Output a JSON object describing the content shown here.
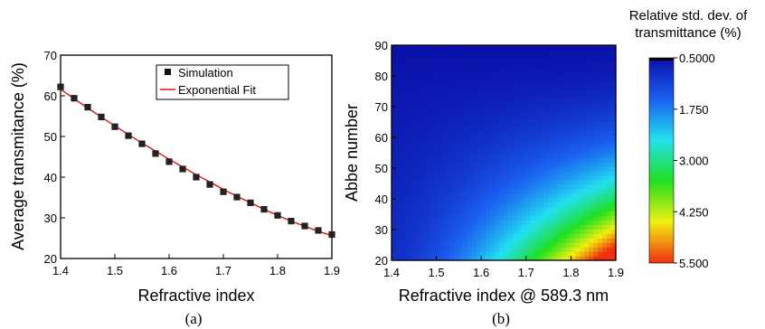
{
  "chart_data": [
    {
      "type": "scatter",
      "caption": "(a)",
      "xlabel": "Refractive index",
      "ylabel": "Average transmitance (%)",
      "xlim": [
        1.4,
        1.9
      ],
      "ylim": [
        20,
        70
      ],
      "x_ticks": [
        "1.4",
        "1.5",
        "1.6",
        "1.7",
        "1.8",
        "1.9"
      ],
      "y_ticks": [
        "20",
        "30",
        "40",
        "50",
        "60",
        "70"
      ],
      "grid": false,
      "legend_position": "top-right",
      "series": [
        {
          "name": "Simulation",
          "style": "square-marker",
          "color": "#000000",
          "x": [
            1.4,
            1.425,
            1.45,
            1.475,
            1.5,
            1.525,
            1.55,
            1.575,
            1.6,
            1.625,
            1.65,
            1.675,
            1.7,
            1.725,
            1.75,
            1.775,
            1.8,
            1.825,
            1.85,
            1.875,
            1.9
          ],
          "y": [
            62.2,
            59.4,
            57.2,
            54.8,
            52.4,
            50.2,
            48.2,
            45.8,
            43.8,
            42.0,
            40.0,
            38.2,
            36.4,
            35.1,
            33.7,
            32.1,
            30.6,
            29.2,
            28.0,
            26.9,
            25.9
          ]
        },
        {
          "name": "Exponential Fit",
          "style": "line",
          "color": "#e01010",
          "x": [
            1.4,
            1.425,
            1.45,
            1.475,
            1.5,
            1.525,
            1.55,
            1.575,
            1.6,
            1.625,
            1.65,
            1.675,
            1.7,
            1.725,
            1.75,
            1.775,
            1.8,
            1.825,
            1.85,
            1.875,
            1.9
          ],
          "y": [
            61.6,
            59.3,
            57.0,
            54.8,
            52.6,
            50.5,
            48.4,
            46.4,
            44.4,
            42.5,
            40.6,
            38.8,
            37.0,
            35.3,
            33.7,
            32.1,
            30.6,
            29.2,
            27.9,
            26.7,
            25.6
          ]
        }
      ]
    },
    {
      "type": "heatmap",
      "caption": "(b)",
      "xlabel": "Refractive index @ 589.3 nm",
      "ylabel": "Abbe number",
      "xlim": [
        1.4,
        1.9
      ],
      "ylim": [
        20,
        90
      ],
      "x_ticks": [
        "1.4",
        "1.5",
        "1.6",
        "1.7",
        "1.8",
        "1.9"
      ],
      "y_ticks": [
        "20",
        "30",
        "40",
        "50",
        "60",
        "70",
        "80",
        "90"
      ],
      "z_description": "relative std. dev. increases with refractive index and decreases with Abbe number",
      "z_range": [
        0.5,
        5.5
      ],
      "colorbar": {
        "title": [
          "Relative std. dev. of",
          "transmittance (%)"
        ],
        "tick_labels": [
          "0.5000",
          "1.750",
          "3.000",
          "4.250",
          "5.500"
        ],
        "tick_values": [
          0.5,
          1.75,
          3.0,
          4.25,
          5.5
        ],
        "colors": [
          "#0a10a8",
          "#1a5ef0",
          "#22e0f0",
          "#20e020",
          "#f0f010",
          "#f03010"
        ]
      }
    }
  ]
}
